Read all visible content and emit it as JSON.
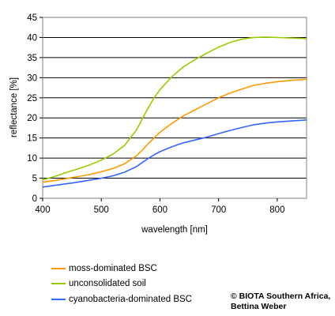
{
  "chart_data": {
    "type": "line",
    "xlabel": "wavelength [nm]",
    "ylabel": "reflectance [%]",
    "xlim": [
      400,
      850
    ],
    "ylim": [
      0,
      45
    ],
    "xticks": [
      400,
      500,
      600,
      700,
      800
    ],
    "yticks": [
      0,
      5,
      10,
      15,
      20,
      25,
      30,
      35,
      40,
      45
    ],
    "grid": "horizontal",
    "legend": "bottom-left",
    "x": [
      400,
      420,
      440,
      460,
      480,
      500,
      520,
      540,
      560,
      570,
      580,
      590,
      600,
      620,
      640,
      660,
      680,
      700,
      720,
      740,
      760,
      780,
      800,
      820,
      840,
      850
    ],
    "series": [
      {
        "name": "moss-dominated BSC",
        "color": "#FF9900",
        "values": [
          4.0,
          4.4,
          4.9,
          5.4,
          5.9,
          6.6,
          7.4,
          8.6,
          10.6,
          12.0,
          13.6,
          15.0,
          16.4,
          18.6,
          20.5,
          22.0,
          23.5,
          25.0,
          26.2,
          27.2,
          28.1,
          28.6,
          29.0,
          29.3,
          29.5,
          29.6
        ]
      },
      {
        "name": "unconsolidated soil",
        "color": "#99CC00",
        "values": [
          4.6,
          5.4,
          6.4,
          7.3,
          8.3,
          9.5,
          11.0,
          13.2,
          17.0,
          19.8,
          22.5,
          25.0,
          27.0,
          30.2,
          32.7,
          34.5,
          36.1,
          37.6,
          38.8,
          39.6,
          40.0,
          40.1,
          40.0,
          39.9,
          39.8,
          39.7
        ]
      },
      {
        "name": "cyanobacteria-dominated BSC",
        "color": "#3366FF",
        "values": [
          2.8,
          3.2,
          3.6,
          4.0,
          4.5,
          5.0,
          5.6,
          6.5,
          7.9,
          8.9,
          9.9,
          10.8,
          11.6,
          12.8,
          13.8,
          14.5,
          15.2,
          16.1,
          16.9,
          17.6,
          18.3,
          18.7,
          19.0,
          19.2,
          19.4,
          19.5
        ]
      }
    ]
  },
  "credit": {
    "line1": "© BIOTA Southern Africa,",
    "line2": "Bettina Weber"
  }
}
